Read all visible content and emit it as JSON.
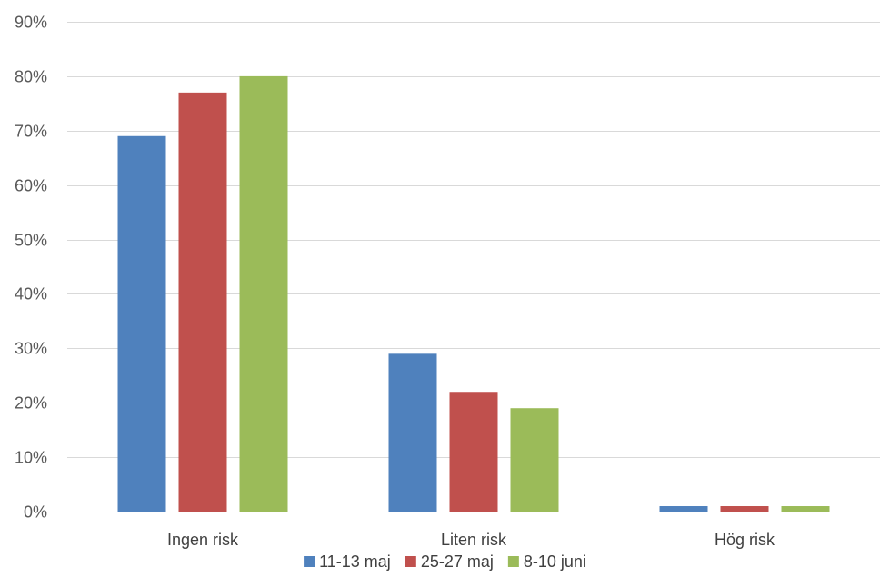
{
  "chart_data": {
    "type": "bar",
    "title": "",
    "xlabel": "",
    "ylabel": "",
    "categories": [
      "Ingen risk",
      "Liten risk",
      "Hög risk"
    ],
    "series": [
      {
        "name": "11-13 maj",
        "color": "#4f81bd",
        "values": [
          69,
          29,
          1
        ]
      },
      {
        "name": "25-27 maj",
        "color": "#c0504d",
        "values": [
          77,
          22,
          1
        ]
      },
      {
        "name": "8-10 juni",
        "color": "#9bbb59",
        "values": [
          80,
          19,
          1
        ]
      }
    ],
    "ylim": [
      0,
      90
    ],
    "yticks": [
      0,
      10,
      20,
      30,
      40,
      50,
      60,
      70,
      80,
      90
    ],
    "ytick_labels": [
      "0%",
      "10%",
      "20%",
      "30%",
      "40%",
      "50%",
      "60%",
      "70%",
      "80%",
      "90%"
    ],
    "grid": true,
    "legend_position": "bottom"
  }
}
